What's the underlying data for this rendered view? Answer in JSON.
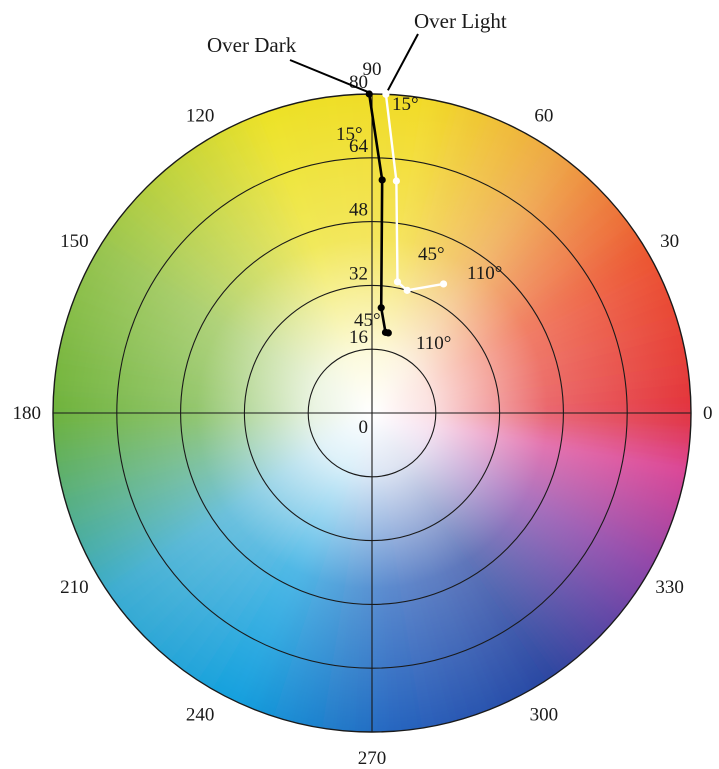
{
  "chart_data": {
    "type": "polar-scatter",
    "angular_axis": {
      "unit": "degrees",
      "ticks": [
        0,
        30,
        60,
        90,
        120,
        150,
        180,
        210,
        240,
        270,
        300,
        330
      ],
      "tick_labels": [
        "0",
        "30",
        "60",
        "90",
        "120",
        "150",
        "180",
        "210",
        "240",
        "270",
        "300",
        "330"
      ]
    },
    "radial_axis": {
      "range": [
        0,
        80
      ],
      "rings": [
        16,
        32,
        48,
        64,
        80
      ],
      "tick_labels": [
        "0",
        "16",
        "32",
        "48",
        "64",
        "80"
      ]
    },
    "background": "hue-chroma color wheel",
    "series": [
      {
        "name": "Over Dark",
        "color": "#000000",
        "points": [
          {
            "hue": 90.5,
            "chroma": 80.0
          },
          {
            "hue": 87.5,
            "chroma": 58.5
          },
          {
            "hue": 85.0,
            "chroma": 26.5
          },
          {
            "hue": 80.5,
            "chroma": 20.5
          },
          {
            "hue": 78.5,
            "chroma": 20.5
          }
        ]
      },
      {
        "name": "Over Light",
        "color": "#ffffff",
        "points": [
          {
            "hue": 87.5,
            "chroma": 80.0
          },
          {
            "hue": 84.0,
            "chroma": 58.5
          },
          {
            "hue": 79.0,
            "chroma": 33.5
          },
          {
            "hue": 74.0,
            "chroma": 32.0
          },
          {
            "hue": 61.0,
            "chroma": 37.0
          }
        ]
      }
    ],
    "annotations": [
      {
        "text": "15°",
        "series": "Over Light",
        "near": "start"
      },
      {
        "text": "45°",
        "series": "Over Light",
        "near": "middle"
      },
      {
        "text": "110°",
        "series": "Over Light",
        "near": "end"
      },
      {
        "text": "15°",
        "series": "Over Dark",
        "near": "start"
      },
      {
        "text": "45°",
        "series": "Over Dark",
        "near": "middle"
      },
      {
        "text": "110°",
        "series": "Over Dark",
        "near": "end"
      }
    ]
  }
}
